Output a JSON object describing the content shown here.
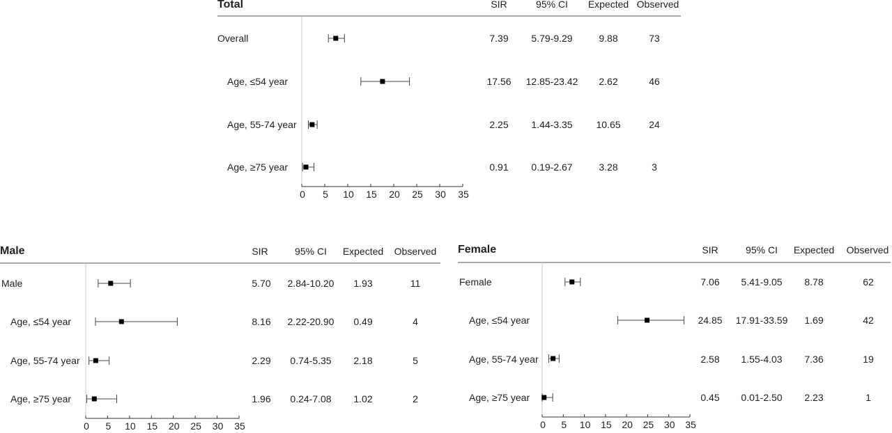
{
  "chart_data": [
    {
      "type": "forest",
      "title": "Total",
      "columns": [
        "SIR",
        "95% CI",
        "Expected",
        "Observed"
      ],
      "xlim": [
        0,
        35
      ],
      "xticks": [
        0,
        5,
        10,
        15,
        20,
        25,
        30,
        35
      ],
      "rows": [
        {
          "label": "Overall",
          "sir": 7.39,
          "lo": 5.79,
          "hi": 9.29,
          "sir_text": "7.39",
          "ci_text": "5.79-9.29",
          "expected": "9.88",
          "observed": "73"
        },
        {
          "label": "Age, ≤54 year",
          "sir": 17.56,
          "lo": 12.85,
          "hi": 23.42,
          "sir_text": "17.56",
          "ci_text": "12.85-23.42",
          "expected": "2.62",
          "observed": "46"
        },
        {
          "label": "Age, 55-74 year",
          "sir": 2.25,
          "lo": 1.44,
          "hi": 3.35,
          "sir_text": "2.25",
          "ci_text": "1.44-3.35",
          "expected": "10.65",
          "observed": "24"
        },
        {
          "label": "Age, ≥75 year",
          "sir": 0.91,
          "lo": 0.19,
          "hi": 2.67,
          "sir_text": "0.91",
          "ci_text": "0.19-2.67",
          "expected": "3.28",
          "observed": "3"
        }
      ]
    },
    {
      "type": "forest",
      "title": "Male",
      "columns": [
        "SIR",
        "95% CI",
        "Expected",
        "Observed"
      ],
      "xlim": [
        0,
        35
      ],
      "xticks": [
        0,
        5,
        10,
        15,
        20,
        25,
        30,
        35
      ],
      "rows": [
        {
          "label": "Male",
          "sir": 5.7,
          "lo": 2.84,
          "hi": 10.2,
          "sir_text": "5.70",
          "ci_text": "2.84-10.20",
          "expected": "1.93",
          "observed": "11"
        },
        {
          "label": "Age, ≤54 year",
          "sir": 8.16,
          "lo": 2.22,
          "hi": 20.9,
          "sir_text": "8.16",
          "ci_text": "2.22-20.90",
          "expected": "0.49",
          "observed": "4"
        },
        {
          "label": "Age, 55-74 year",
          "sir": 2.29,
          "lo": 0.74,
          "hi": 5.35,
          "sir_text": "2.29",
          "ci_text": "0.74-5.35",
          "expected": "2.18",
          "observed": "5"
        },
        {
          "label": "Age, ≥75 year",
          "sir": 1.96,
          "lo": 0.24,
          "hi": 7.08,
          "sir_text": "1.96",
          "ci_text": "0.24-7.08",
          "expected": "1.02",
          "observed": "2"
        }
      ]
    },
    {
      "type": "forest",
      "title": "Female",
      "columns": [
        "SIR",
        "95% CI",
        "Expected",
        "Observed"
      ],
      "xlim": [
        0,
        35
      ],
      "xticks": [
        0,
        5,
        10,
        15,
        20,
        25,
        30,
        35
      ],
      "rows": [
        {
          "label": "Female",
          "sir": 7.06,
          "lo": 5.41,
          "hi": 9.05,
          "sir_text": "7.06",
          "ci_text": "5.41-9.05",
          "expected": "8.78",
          "observed": "62"
        },
        {
          "label": "Age, ≤54 year",
          "sir": 24.85,
          "lo": 17.91,
          "hi": 33.59,
          "sir_text": "24.85",
          "ci_text": "17.91-33.59",
          "expected": "1.69",
          "observed": "42"
        },
        {
          "label": "Age, 55-74 year",
          "sir": 2.58,
          "lo": 1.55,
          "hi": 4.03,
          "sir_text": "2.58",
          "ci_text": "1.55-4.03",
          "expected": "7.36",
          "observed": "19"
        },
        {
          "label": "Age, ≥75 year",
          "sir": 0.45,
          "lo": 0.01,
          "hi": 2.5,
          "sir_text": "0.45",
          "ci_text": "0.01-2.50",
          "expected": "2.23",
          "observed": "1"
        }
      ]
    }
  ]
}
